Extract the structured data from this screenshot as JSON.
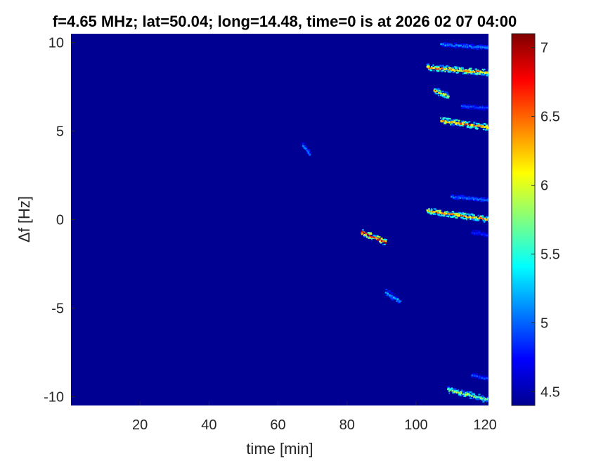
{
  "chart_data": {
    "type": "heatmap",
    "title": "f=4.65 MHz;  lat=50.04; long=14.48, time=0 is at 2026 02 07 04:00",
    "xlabel": "time [min]",
    "ylabel": "Δf [Hz]",
    "xlim": [
      0,
      121
    ],
    "ylim": [
      -10.5,
      10.5
    ],
    "x_ticks": [
      "20",
      "40",
      "60",
      "80",
      "100",
      "120"
    ],
    "x_tick_values": [
      20,
      40,
      60,
      80,
      100,
      120
    ],
    "y_ticks": [
      "10",
      "5",
      "0",
      "-5",
      "-10"
    ],
    "y_tick_values": [
      10,
      5,
      0,
      -5,
      -10
    ],
    "colorbar": {
      "ticks": [
        "7",
        "6.5",
        "6",
        "5.5",
        "5",
        "4.5"
      ],
      "tick_values": [
        7,
        6.5,
        6,
        5.5,
        5,
        4.5
      ],
      "range": [
        4.4,
        7.1
      ],
      "colormap": "jet"
    },
    "background_value": 4.45,
    "features": [
      {
        "t_start": 103,
        "t_end": 121,
        "df_start": 8.6,
        "df_end": 8.3,
        "peak": 6.6
      },
      {
        "t_start": 107,
        "t_end": 121,
        "df_start": 9.9,
        "df_end": 9.7,
        "peak": 5.2
      },
      {
        "t_start": 107,
        "t_end": 121,
        "df_start": 5.6,
        "df_end": 5.2,
        "peak": 6.7
      },
      {
        "t_start": 113,
        "t_end": 121,
        "df_start": 6.4,
        "df_end": 6.3,
        "peak": 5.0
      },
      {
        "t_start": 110,
        "t_end": 121,
        "df_start": 1.3,
        "df_end": 1.1,
        "peak": 5.1
      },
      {
        "t_start": 103,
        "t_end": 121,
        "df_start": 0.5,
        "df_end": 0.0,
        "peak": 6.6
      },
      {
        "t_start": 105,
        "t_end": 109,
        "df_start": 7.3,
        "df_end": 7.0,
        "peak": 6.4
      },
      {
        "t_start": 84,
        "t_end": 91,
        "df_start": -0.7,
        "df_end": -1.3,
        "peak": 7.1
      },
      {
        "t_start": 67,
        "t_end": 69,
        "df_start": 4.2,
        "df_end": 3.7,
        "peak": 5.2
      },
      {
        "t_start": 91,
        "t_end": 95,
        "df_start": -4.1,
        "df_end": -4.6,
        "peak": 5.3
      },
      {
        "t_start": 109,
        "t_end": 121,
        "df_start": -9.6,
        "df_end": -10.2,
        "peak": 6.0
      },
      {
        "t_start": 116,
        "t_end": 121,
        "df_start": -8.8,
        "df_end": -9.0,
        "peak": 5.0
      },
      {
        "t_start": 116,
        "t_end": 121,
        "df_start": -0.7,
        "df_end": -0.9,
        "peak": 4.9
      }
    ]
  }
}
